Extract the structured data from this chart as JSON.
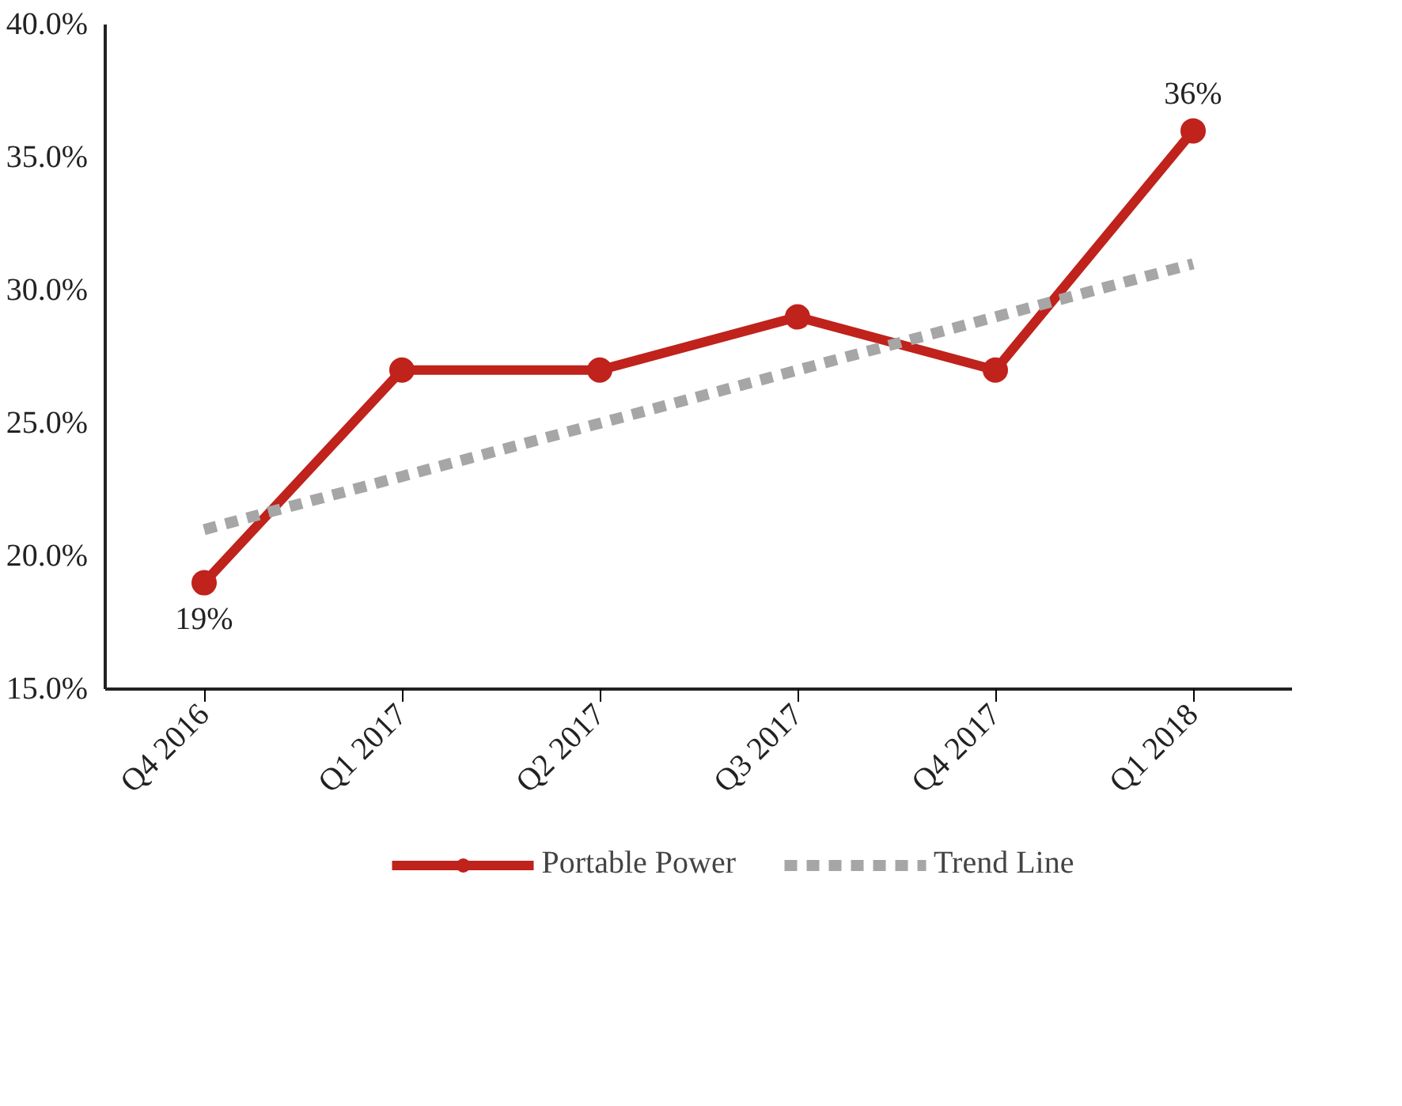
{
  "chart_data": {
    "type": "line",
    "categories": [
      "Q4 2016",
      "Q1 2017",
      "Q2 2017",
      "Q3 2017",
      "Q4 2017",
      "Q1 2018"
    ],
    "series": [
      {
        "name": "Portable Power",
        "color": "#c0221c",
        "values": [
          19,
          27,
          27,
          29,
          27,
          36
        ],
        "marker": "circle",
        "line_style": "solid",
        "value_labels": [
          "19%",
          null,
          null,
          null,
          null,
          "36%"
        ]
      },
      {
        "name": "Trend Line",
        "color": "#a6a6a6",
        "values": [
          21,
          23,
          25,
          27,
          29,
          31
        ],
        "marker": "none",
        "line_style": "dashed"
      }
    ],
    "ylim": [
      15,
      40
    ],
    "yticks": [
      {
        "value": 15,
        "label": "15.0%"
      },
      {
        "value": 20,
        "label": "20.0%"
      },
      {
        "value": 25,
        "label": "25.0%"
      },
      {
        "value": 30,
        "label": "30.0%"
      },
      {
        "value": 35,
        "label": "35.0%"
      },
      {
        "value": 40,
        "label": "40.0%"
      }
    ],
    "grid": false,
    "legend": "bottom"
  }
}
